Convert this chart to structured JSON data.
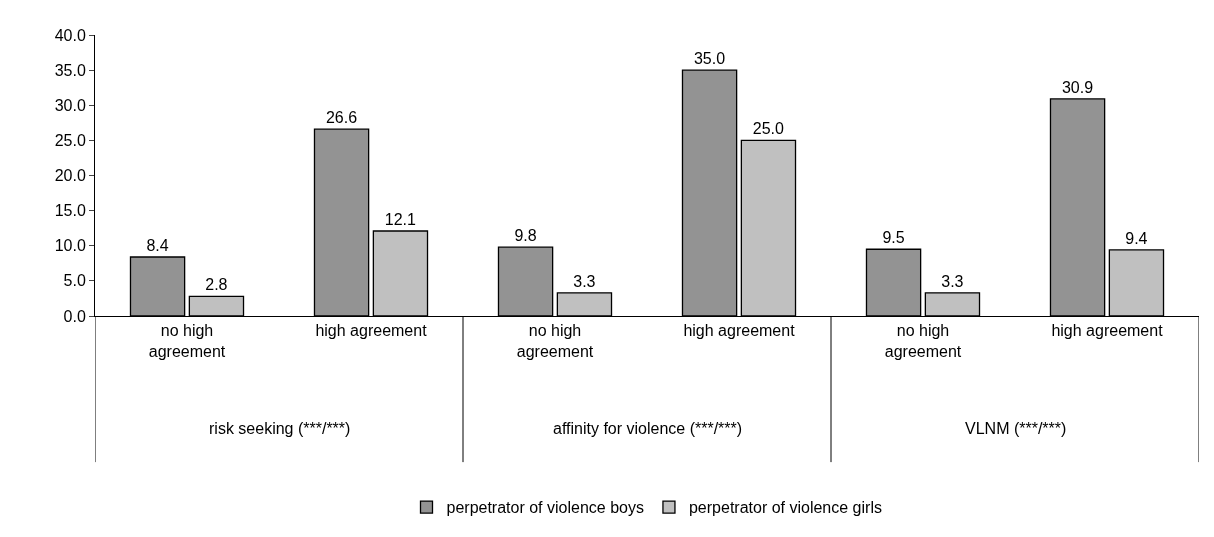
{
  "chart_data": {
    "type": "bar",
    "categories": [
      "no high agreement",
      "high agreement",
      "no high agreement",
      "high agreement",
      "no high agreement",
      "high agreement"
    ],
    "series": [
      {
        "name": "perpetrator of violence boys",
        "color": "#939393",
        "values": [
          8.4,
          26.6,
          9.8,
          35.0,
          9.5,
          30.9
        ],
        "value_labels": [
          "8.4",
          "26.6",
          "9.8",
          "35.0",
          "9.5",
          "30.9"
        ]
      },
      {
        "name": "perpetrator of violence girls",
        "color": "#c0c0c0",
        "values": [
          2.8,
          12.1,
          3.3,
          25.0,
          3.3,
          9.4
        ],
        "value_labels": [
          "2.8",
          "12.1",
          "3.3",
          "25.0",
          "3.3",
          "9.4"
        ]
      }
    ],
    "annotations": [
      "risk seeking (***/***)",
      "affinity for violence (***/***)",
      "VLNM (***/***)"
    ],
    "ylim": [
      0,
      40
    ],
    "yticks": [
      {
        "value": 0,
        "label": "0.0"
      },
      {
        "value": 5,
        "label": "5.0"
      },
      {
        "value": 10,
        "label": "10.0"
      },
      {
        "value": 15,
        "label": "15.0"
      },
      {
        "value": 20,
        "label": "20.0"
      },
      {
        "value": 25,
        "label": "25.0"
      },
      {
        "value": 30,
        "label": "30.0"
      },
      {
        "value": 35,
        "label": "35.0"
      },
      {
        "value": 40,
        "label": "40.0"
      }
    ],
    "grid": false,
    "legend": "bottom"
  }
}
